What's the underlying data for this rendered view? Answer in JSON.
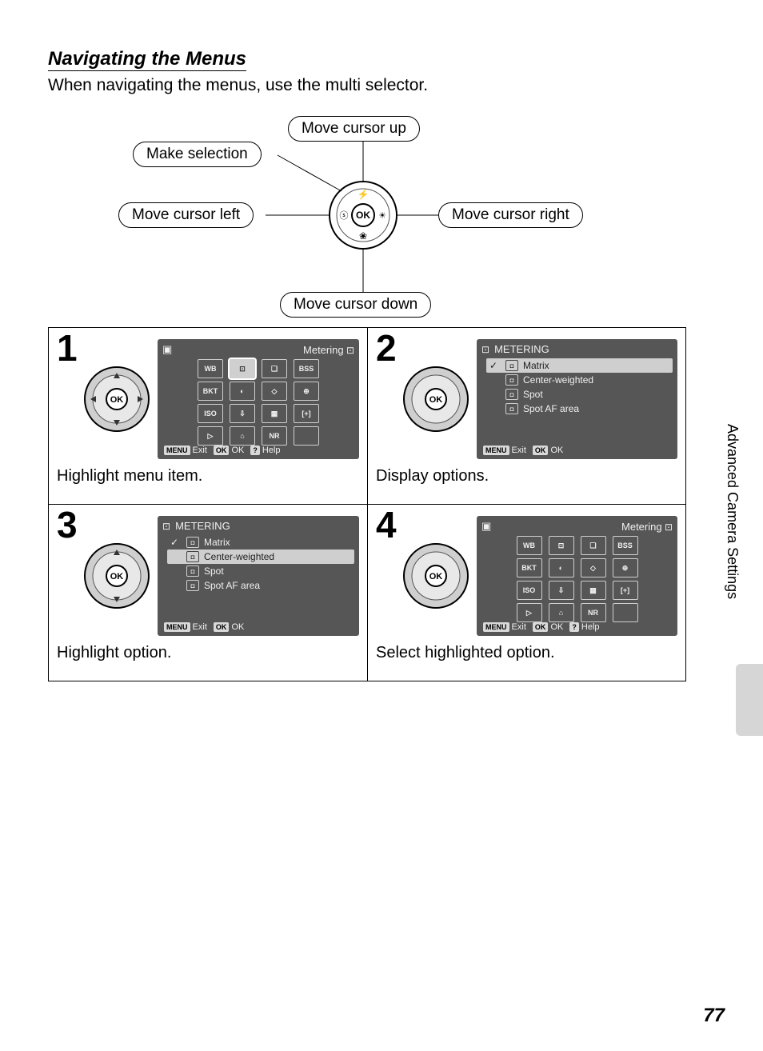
{
  "heading": "Navigating the Menus",
  "intro": "When navigating the menus, use the multi selector.",
  "diagram": {
    "up": "Move cursor up",
    "down": "Move cursor down",
    "left": "Move cursor left",
    "right": "Move cursor right",
    "select": "Make selection",
    "ok": "OK"
  },
  "sidebar": "Advanced Camera Settings",
  "page": "77",
  "steps": {
    "s1": {
      "num": "1",
      "caption": "Highlight menu item.",
      "lcd_title": "Metering",
      "icons": [
        "WB",
        "⊡",
        "❏",
        "BSS",
        "BKT",
        "◐",
        "◇",
        "⊕",
        "ISO",
        "⇩",
        "▦",
        "[+]",
        "▷",
        "⌂",
        "NR",
        ""
      ],
      "hl_index": 1,
      "footer": [
        [
          "MENU",
          "Exit"
        ],
        [
          "OK",
          "OK"
        ],
        [
          "?",
          "Help"
        ]
      ]
    },
    "s2": {
      "num": "2",
      "caption": "Display options.",
      "lcd_title": "METERING",
      "options": [
        "Matrix",
        "Center-weighted",
        "Spot",
        "Spot AF area"
      ],
      "hl_index": 0,
      "footer": [
        [
          "MENU",
          "Exit"
        ],
        [
          "OK",
          "OK"
        ]
      ]
    },
    "s3": {
      "num": "3",
      "caption": "Highlight option.",
      "lcd_title": "METERING",
      "options": [
        "Matrix",
        "Center-weighted",
        "Spot",
        "Spot AF area"
      ],
      "hl_index": 1,
      "footer": [
        [
          "MENU",
          "Exit"
        ],
        [
          "OK",
          "OK"
        ]
      ]
    },
    "s4": {
      "num": "4",
      "caption": "Select highlighted option.",
      "lcd_title": "Metering",
      "icons": [
        "WB",
        "⊡",
        "❏",
        "BSS",
        "BKT",
        "◐",
        "◇",
        "⊕",
        "ISO",
        "⇩",
        "▦",
        "[+]",
        "▷",
        "⌂",
        "NR",
        ""
      ],
      "hl_index": -1,
      "footer": [
        [
          "MENU",
          "Exit"
        ],
        [
          "OK",
          "OK"
        ],
        [
          "?",
          "Help"
        ]
      ]
    }
  }
}
